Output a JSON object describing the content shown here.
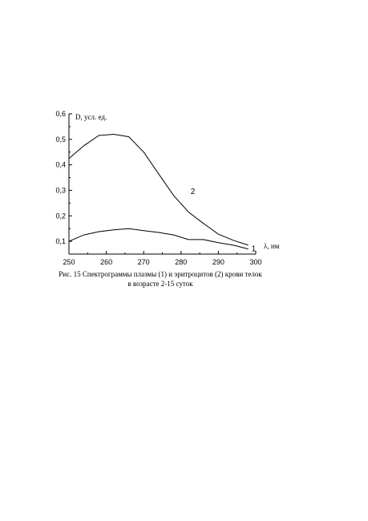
{
  "chart_data": {
    "type": "line",
    "title": "",
    "xlabel": "λ, нм",
    "ylabel": "D, усл. ед.",
    "xlim": [
      250,
      300
    ],
    "ylim": [
      0.05,
      0.6
    ],
    "x_ticks": [
      250,
      260,
      270,
      280,
      290,
      300
    ],
    "y_ticks": [
      0.1,
      0.2,
      0.3,
      0.4,
      0.5,
      0.6
    ],
    "x_tick_labels": [
      "250",
      "260",
      "270",
      "280",
      "290",
      "300"
    ],
    "y_tick_labels": [
      "0,1",
      "0,2",
      "0,3",
      "0,4",
      "0,5",
      "0,6"
    ],
    "grid": false,
    "legend": "none",
    "series": [
      {
        "label": "1",
        "x": [
          250,
          254,
          258,
          262,
          266,
          270,
          274,
          278,
          282,
          286,
          290,
          294,
          298
        ],
        "y": [
          0.1,
          0.125,
          0.138,
          0.145,
          0.15,
          0.142,
          0.135,
          0.125,
          0.107,
          0.107,
          0.095,
          0.085,
          0.07
        ]
      },
      {
        "label": "2",
        "x": [
          250,
          254,
          258,
          262,
          266,
          270,
          274,
          278,
          282,
          286,
          290,
          294,
          298
        ],
        "y": [
          0.425,
          0.475,
          0.515,
          0.52,
          0.51,
          0.45,
          0.365,
          0.28,
          0.215,
          0.17,
          0.128,
          0.104,
          0.085
        ]
      }
    ]
  },
  "caption": {
    "line1": "Рис. 15 Спектрограммы плазмы (1) и эритроцитов (2) крови телок",
    "line2": "в возрасте 2-15 суток"
  }
}
